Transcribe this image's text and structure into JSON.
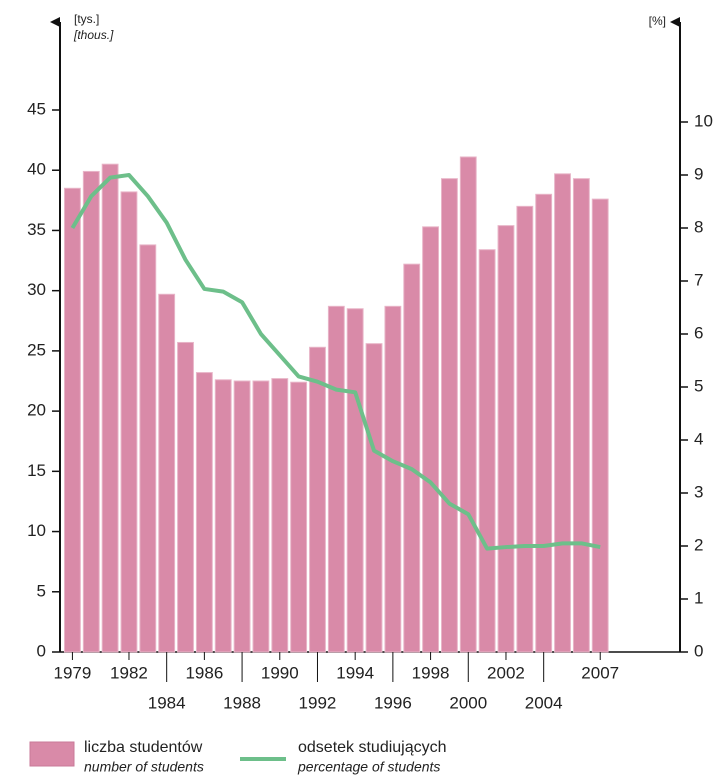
{
  "chart_data": {
    "type": "bar-line",
    "y_label": "[tys.]",
    "y_label_en": "[thous.]",
    "y2_label": "[%]",
    "categories": [
      "1979",
      null,
      null,
      "1982",
      null,
      "1984",
      null,
      "1986",
      null,
      "1988",
      null,
      "1990",
      null,
      "1992",
      null,
      "1994",
      null,
      "1996",
      null,
      "1998",
      null,
      "2000",
      null,
      "2002",
      null,
      "2004",
      null,
      null,
      "2007"
    ],
    "series": [
      {
        "name": "liczba studentów",
        "name_en": "number of students",
        "type": "bar",
        "color": "#d98aa8",
        "values": [
          38.5,
          39.9,
          40.5,
          38.2,
          33.8,
          29.7,
          25.7,
          23.2,
          22.6,
          22.5,
          22.5,
          22.7,
          22.4,
          25.3,
          28.7,
          28.5,
          25.6,
          28.7,
          32.2,
          35.3,
          39.3,
          41.1,
          33.4,
          35.4,
          37.0,
          38.0,
          39.7,
          39.3,
          37.6
        ]
      },
      {
        "name": "odsetek studiujących",
        "name_en": "percentage of students",
        "type": "line",
        "axis": "y2",
        "color": "#6dbf8a",
        "values": [
          8.0,
          8.6,
          8.95,
          9.0,
          8.6,
          8.1,
          7.4,
          6.85,
          6.8,
          6.6,
          6.0,
          5.6,
          5.2,
          5.1,
          4.95,
          4.9,
          3.8,
          3.6,
          3.45,
          3.2,
          2.8,
          2.6,
          1.95,
          1.98,
          2.0,
          2.0,
          2.05,
          2.05,
          1.98
        ]
      }
    ],
    "ylim": [
      0,
      45
    ],
    "yticks": [
      0,
      5,
      10,
      15,
      20,
      25,
      30,
      35,
      40,
      45
    ],
    "y2lim": [
      0,
      10
    ],
    "y2ticks": [
      0,
      1,
      2,
      3,
      4,
      5,
      6,
      7,
      8,
      9,
      10
    ]
  }
}
